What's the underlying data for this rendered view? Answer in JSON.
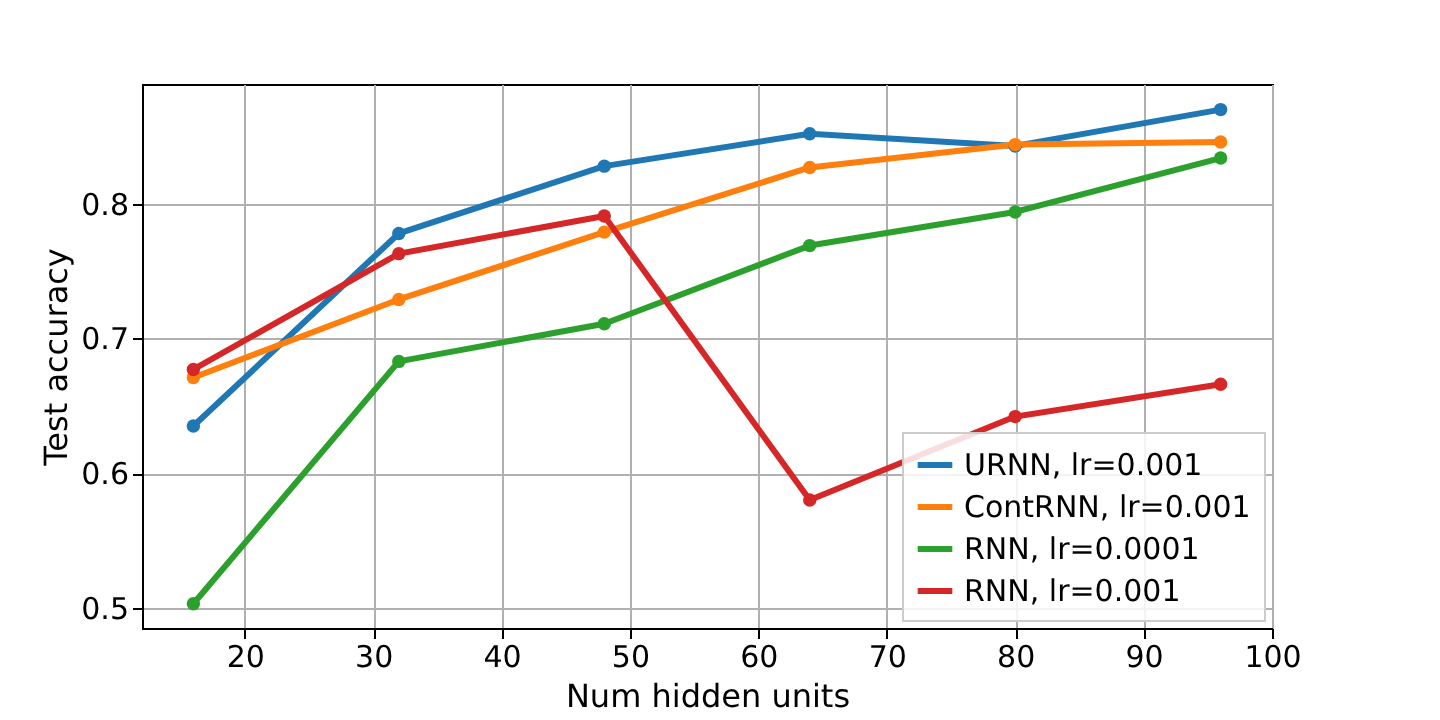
{
  "chart_data": {
    "type": "line",
    "xlabel": "Num hidden units",
    "ylabel": "Test accuracy",
    "x": [
      16,
      32,
      48,
      64,
      80,
      96
    ],
    "series": [
      {
        "name": "URNN, lr=0.001",
        "color": "#1f77b4",
        "values": [
          0.635,
          0.778,
          0.828,
          0.852,
          0.843,
          0.87
        ]
      },
      {
        "name": "ContRNN, lr=0.001",
        "color": "#ff7f0e",
        "values": [
          0.671,
          0.729,
          0.779,
          0.827,
          0.844,
          0.846
        ]
      },
      {
        "name": "RNN, lr=0.0001",
        "color": "#2ca02c",
        "values": [
          0.503,
          0.683,
          0.711,
          0.769,
          0.794,
          0.834
        ]
      },
      {
        "name": "RNN, lr=0.001",
        "color": "#d62728",
        "values": [
          0.677,
          0.763,
          0.791,
          0.58,
          0.642,
          0.666
        ]
      }
    ],
    "xlim": [
      12,
      100
    ],
    "xticks": [
      20,
      30,
      40,
      50,
      60,
      70,
      80,
      90,
      100
    ],
    "ylim": [
      0.485,
      0.889
    ],
    "yticks": [
      0.5,
      0.6,
      0.7,
      0.8
    ],
    "grid": true,
    "legend": "bottom right",
    "marker": "circle",
    "line_style": "solid"
  }
}
